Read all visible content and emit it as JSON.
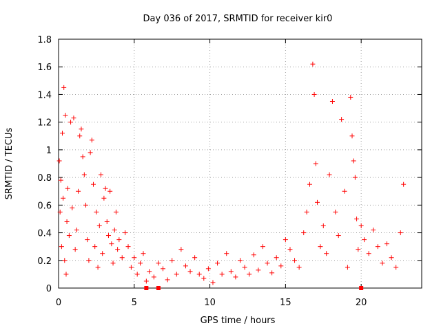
{
  "chart_data": {
    "type": "scatter",
    "title": "Day 036 of 2017, SRMTID for receiver kir0",
    "xlabel": "GPS time / hours",
    "ylabel": "SRMTID / TECUs",
    "xlim": [
      0,
      24
    ],
    "ylim": [
      0,
      1.8
    ],
    "x_ticks": [
      0,
      5,
      10,
      15,
      20
    ],
    "y_ticks": [
      0,
      0.2,
      0.4,
      0.6,
      0.8,
      1,
      1.2,
      1.4,
      1.6,
      1.8
    ],
    "x_tick_labels": [
      "0",
      "5",
      "10",
      "15",
      "20"
    ],
    "y_tick_labels": [
      "0",
      "0.2",
      "0.4",
      "0.6",
      "0.8",
      "1",
      "1.2",
      "1.4",
      "1.6",
      "1.8"
    ],
    "grid": true,
    "marker": "+",
    "point_color": "#ff0000",
    "series": [
      {
        "name": "SRMTID",
        "points": [
          [
            0.05,
            0.92
          ],
          [
            0.1,
            0.55
          ],
          [
            0.15,
            0.78
          ],
          [
            0.2,
            0.3
          ],
          [
            0.25,
            1.12
          ],
          [
            0.3,
            0.65
          ],
          [
            0.35,
            1.45
          ],
          [
            0.4,
            0.2
          ],
          [
            0.45,
            1.25
          ],
          [
            0.5,
            0.1
          ],
          [
            0.55,
            0.48
          ],
          [
            0.6,
            0.72
          ],
          [
            0.7,
            0.38
          ],
          [
            0.8,
            1.2
          ],
          [
            0.9,
            0.58
          ],
          [
            1.0,
            1.23
          ],
          [
            1.1,
            0.28
          ],
          [
            1.2,
            0.42
          ],
          [
            1.3,
            0.7
          ],
          [
            1.4,
            1.1
          ],
          [
            1.5,
            1.15
          ],
          [
            1.6,
            0.95
          ],
          [
            1.7,
            0.82
          ],
          [
            1.8,
            0.6
          ],
          [
            1.9,
            0.35
          ],
          [
            2.0,
            0.2
          ],
          [
            2.1,
            0.98
          ],
          [
            2.2,
            1.07
          ],
          [
            2.3,
            0.75
          ],
          [
            2.4,
            0.3
          ],
          [
            2.5,
            0.55
          ],
          [
            2.6,
            0.15
          ],
          [
            2.7,
            0.45
          ],
          [
            2.8,
            0.82
          ],
          [
            2.9,
            0.25
          ],
          [
            3.0,
            0.65
          ],
          [
            3.1,
            0.72
          ],
          [
            3.2,
            0.48
          ],
          [
            3.3,
            0.38
          ],
          [
            3.4,
            0.7
          ],
          [
            3.5,
            0.32
          ],
          [
            3.6,
            0.18
          ],
          [
            3.7,
            0.42
          ],
          [
            3.8,
            0.55
          ],
          [
            3.9,
            0.28
          ],
          [
            4.0,
            0.35
          ],
          [
            4.2,
            0.22
          ],
          [
            4.4,
            0.4
          ],
          [
            4.6,
            0.3
          ],
          [
            4.8,
            0.15
          ],
          [
            5.0,
            0.22
          ],
          [
            5.2,
            0.1
          ],
          [
            5.4,
            0.18
          ],
          [
            5.6,
            0.25
          ],
          [
            5.8,
            0.05
          ],
          [
            6.0,
            0.12
          ],
          [
            6.3,
            0.08
          ],
          [
            6.6,
            0.18
          ],
          [
            6.9,
            0.14
          ],
          [
            7.2,
            0.06
          ],
          [
            7.5,
            0.2
          ],
          [
            7.8,
            0.1
          ],
          [
            8.1,
            0.28
          ],
          [
            8.4,
            0.16
          ],
          [
            8.7,
            0.12
          ],
          [
            9.0,
            0.22
          ],
          [
            9.3,
            0.1
          ],
          [
            9.6,
            0.07
          ],
          [
            9.9,
            0.14
          ],
          [
            10.2,
            0.04
          ],
          [
            10.5,
            0.18
          ],
          [
            10.8,
            0.1
          ],
          [
            11.1,
            0.25
          ],
          [
            11.4,
            0.12
          ],
          [
            11.7,
            0.08
          ],
          [
            12.0,
            0.2
          ],
          [
            12.3,
            0.15
          ],
          [
            12.6,
            0.1
          ],
          [
            12.9,
            0.24
          ],
          [
            13.2,
            0.13
          ],
          [
            13.5,
            0.3
          ],
          [
            13.8,
            0.18
          ],
          [
            14.1,
            0.11
          ],
          [
            14.4,
            0.22
          ],
          [
            14.7,
            0.16
          ],
          [
            15.0,
            0.35
          ],
          [
            15.3,
            0.28
          ],
          [
            15.6,
            0.2
          ],
          [
            15.9,
            0.15
          ],
          [
            16.2,
            0.4
          ],
          [
            16.4,
            0.55
          ],
          [
            16.6,
            0.75
          ],
          [
            16.8,
            1.62
          ],
          [
            16.9,
            1.4
          ],
          [
            17.0,
            0.9
          ],
          [
            17.1,
            0.62
          ],
          [
            17.3,
            0.3
          ],
          [
            17.5,
            0.45
          ],
          [
            17.7,
            0.25
          ],
          [
            17.9,
            0.82
          ],
          [
            18.1,
            1.35
          ],
          [
            18.3,
            0.55
          ],
          [
            18.5,
            0.38
          ],
          [
            18.7,
            1.22
          ],
          [
            18.9,
            0.7
          ],
          [
            19.1,
            0.15
          ],
          [
            19.3,
            1.38
          ],
          [
            19.4,
            1.1
          ],
          [
            19.5,
            0.92
          ],
          [
            19.6,
            0.8
          ],
          [
            19.7,
            0.5
          ],
          [
            19.8,
            0.28
          ],
          [
            20.0,
            0.45
          ],
          [
            20.2,
            0.35
          ],
          [
            20.5,
            0.25
          ],
          [
            20.8,
            0.42
          ],
          [
            21.1,
            0.3
          ],
          [
            21.4,
            0.18
          ],
          [
            21.7,
            0.32
          ],
          [
            22.0,
            0.22
          ],
          [
            22.3,
            0.15
          ],
          [
            22.6,
            0.4
          ],
          [
            22.8,
            0.75
          ]
        ]
      }
    ],
    "annotations": [
      {
        "text": "square marker",
        "x": 5.8,
        "y": 0
      },
      {
        "text": "square marker",
        "x": 6.6,
        "y": 0
      },
      {
        "text": "square marker",
        "x": 20.0,
        "y": 0
      }
    ]
  }
}
